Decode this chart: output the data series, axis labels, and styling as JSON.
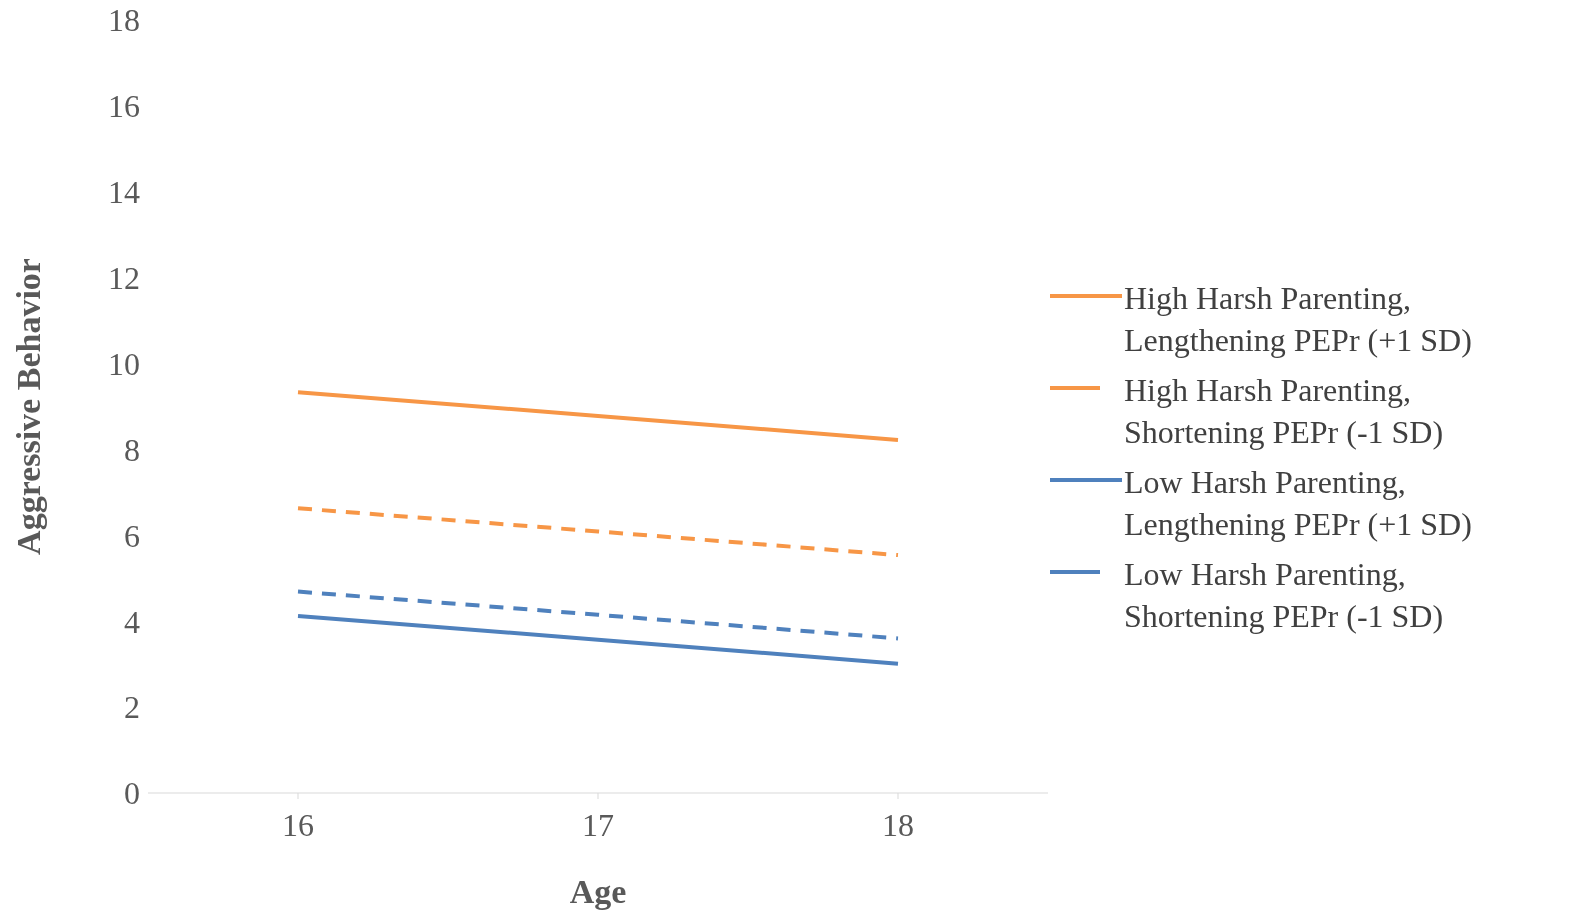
{
  "chart_data": {
    "type": "line",
    "xlabel": "Age",
    "ylabel": "Aggressive Behavior",
    "categories": [
      "16",
      "17",
      "18"
    ],
    "ylim": [
      0,
      18
    ],
    "yticks": [
      0,
      2,
      4,
      6,
      8,
      10,
      12,
      14,
      16,
      18
    ],
    "grid": false,
    "legend": "right",
    "marker": "none",
    "series": [
      {
        "name": "High Harsh Parenting, Lengthening PEPr (+1 SD)",
        "color": "#f79646",
        "line_style": "solid",
        "values": [
          9.33,
          8.78,
          8.22
        ]
      },
      {
        "name": "High Harsh Parenting, Shortening PEPr (-1 SD)",
        "color": "#f79646",
        "line_style": "dashed",
        "values": [
          6.63,
          6.09,
          5.54
        ]
      },
      {
        "name": "Low Harsh Parenting, Lengthening PEPr (+1 SD)",
        "color": "#4f81bd",
        "line_style": "solid",
        "values": [
          4.12,
          3.57,
          3.01
        ]
      },
      {
        "name": "Low Harsh Parenting, Shortening PEPr (-1 SD)",
        "color": "#4f81bd",
        "line_style": "dashed",
        "values": [
          4.69,
          4.15,
          3.6
        ]
      }
    ]
  }
}
